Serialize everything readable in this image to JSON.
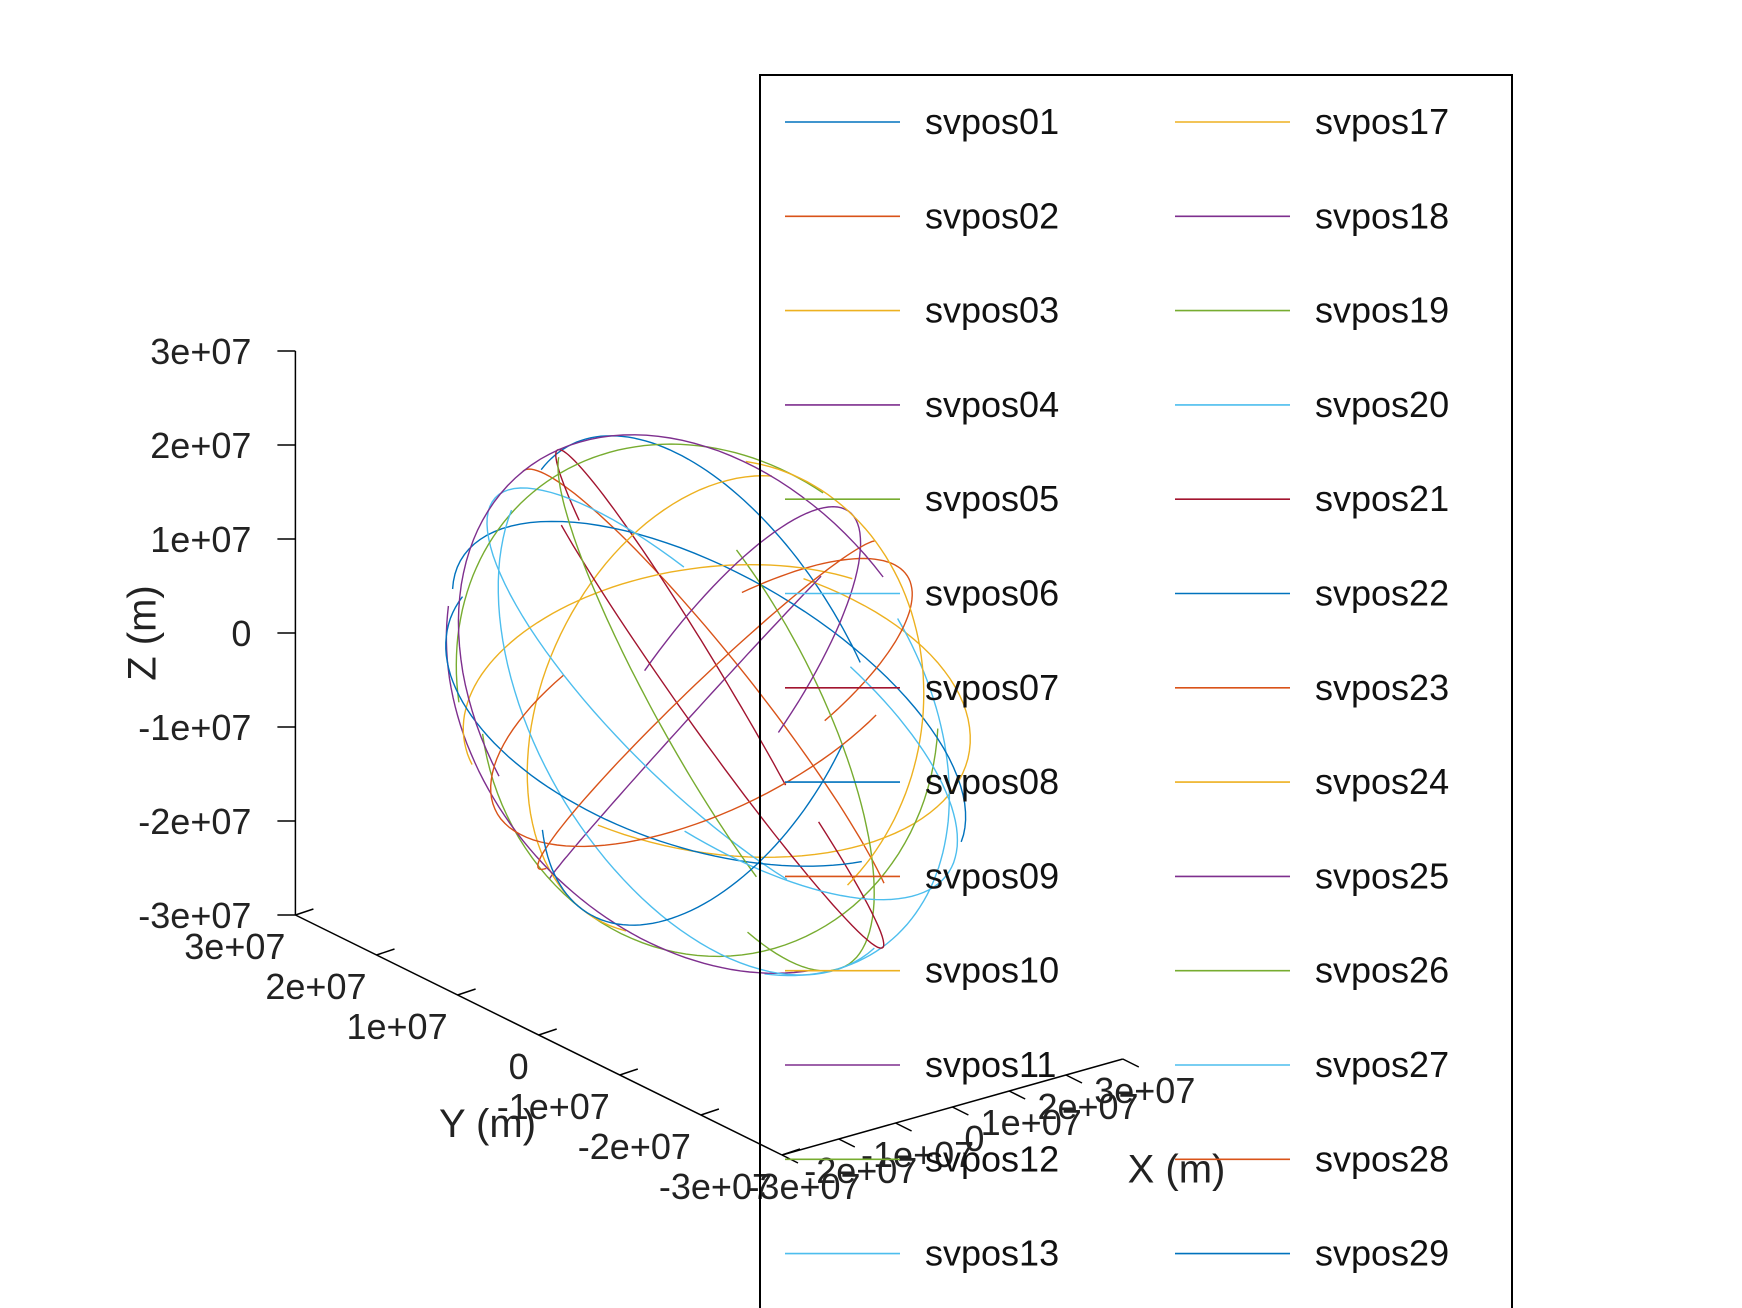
{
  "chart_data": {
    "type": "line",
    "projection": "3d",
    "title": "",
    "xlabel": "X (m)",
    "ylabel": "Y (m)",
    "zlabel": "Z (m)",
    "xlim": [
      -30000000,
      30000000
    ],
    "ylim": [
      -30000000,
      30000000
    ],
    "zlim": [
      -30000000,
      30000000
    ],
    "x_ticks": [
      "-3e+07",
      "-2e+07",
      "-1e+07",
      "0",
      "1e+07",
      "2e+07",
      "3e+07"
    ],
    "y_ticks": [
      "-3e+07",
      "-2e+07",
      "-1e+07",
      "0",
      "1e+07",
      "2e+07",
      "3e+07"
    ],
    "z_ticks": [
      "-3e+07",
      "-2e+07",
      "-1e+07",
      "0",
      "1e+07",
      "2e+07",
      "3e+07"
    ],
    "grid": false,
    "legend_position": "top-right",
    "legend_columns": 2,
    "series": [
      {
        "name": "svpos01",
        "color": "#0072bd"
      },
      {
        "name": "svpos02",
        "color": "#d95319"
      },
      {
        "name": "svpos03",
        "color": "#edb120"
      },
      {
        "name": "svpos04",
        "color": "#7e2f8e"
      },
      {
        "name": "svpos05",
        "color": "#77ac30"
      },
      {
        "name": "svpos06",
        "color": "#4dbeee"
      },
      {
        "name": "svpos07",
        "color": "#a2142f"
      },
      {
        "name": "svpos08",
        "color": "#0072bd"
      },
      {
        "name": "svpos09",
        "color": "#d95319"
      },
      {
        "name": "svpos10",
        "color": "#edb120"
      },
      {
        "name": "svpos11",
        "color": "#7e2f8e"
      },
      {
        "name": "svpos12",
        "color": "#77ac30"
      },
      {
        "name": "svpos13",
        "color": "#4dbeee"
      },
      {
        "name": "svpos17",
        "color": "#edb120"
      },
      {
        "name": "svpos18",
        "color": "#7e2f8e"
      },
      {
        "name": "svpos19",
        "color": "#77ac30"
      },
      {
        "name": "svpos20",
        "color": "#4dbeee"
      },
      {
        "name": "svpos21",
        "color": "#a2142f"
      },
      {
        "name": "svpos22",
        "color": "#0072bd"
      },
      {
        "name": "svpos23",
        "color": "#d95319"
      },
      {
        "name": "svpos24",
        "color": "#edb120"
      },
      {
        "name": "svpos25",
        "color": "#7e2f8e"
      },
      {
        "name": "svpos26",
        "color": "#77ac30"
      },
      {
        "name": "svpos27",
        "color": "#4dbeee"
      },
      {
        "name": "svpos28",
        "color": "#d95319"
      },
      {
        "name": "svpos29",
        "color": "#0072bd"
      }
    ]
  }
}
